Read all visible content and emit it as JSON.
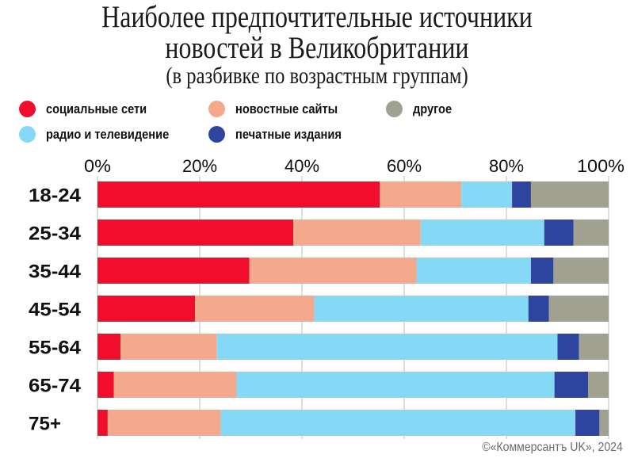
{
  "title_lines": [
    "Наиболее предпочтительные источники",
    "новостей в Великобритании",
    "(в разбивке по возрастным группам)"
  ],
  "credit": "©«Коммерсантъ UK», 2024",
  "chart_data": {
    "type": "bar",
    "orientation": "horizontal",
    "stacked": true,
    "title": "Наиболее предпочтительные источники новостей в Великобритании",
    "subtitle": "(в разбивке по возрастным группам)",
    "xlabel": "",
    "ylabel": "",
    "xlim": [
      0,
      100
    ],
    "x_ticks": [
      "0%",
      "20%",
      "40%",
      "60%",
      "80%",
      "100%"
    ],
    "x_tick_values": [
      0,
      20,
      40,
      60,
      80,
      100
    ],
    "grid": true,
    "legend_position": "top",
    "categories": [
      "18-24",
      "25-34",
      "35-44",
      "45-54",
      "55-64",
      "65-74",
      "75+"
    ],
    "series": [
      {
        "name": "социальные сети",
        "color": "#f00d2e",
        "values": [
          55.2,
          38.3,
          29.7,
          19.1,
          4.5,
          3.2,
          2.0
        ]
      },
      {
        "name": "новостные сайты",
        "color": "#f4a98c",
        "values": [
          16.0,
          24.9,
          32.8,
          23.3,
          18.8,
          24.0,
          22.1
        ]
      },
      {
        "name": "радио и телевидение",
        "color": "#86d8f7",
        "values": [
          9.9,
          24.2,
          22.3,
          41.9,
          66.7,
          62.2,
          69.4
        ]
      },
      {
        "name": "печатные издания",
        "color": "#2e45a0",
        "values": [
          3.7,
          5.7,
          4.4,
          4.0,
          4.2,
          6.6,
          4.7
        ]
      },
      {
        "name": "другое",
        "color": "#a1a191",
        "values": [
          15.2,
          6.9,
          10.8,
          11.7,
          5.8,
          4.0,
          1.8
        ]
      }
    ],
    "legend": [
      {
        "name": "социальные сети",
        "color": "#f00d2e"
      },
      {
        "name": "новостные сайты",
        "color": "#f4a98c"
      },
      {
        "name": "другое",
        "color": "#a1a191"
      },
      {
        "name": "радио и телевидение",
        "color": "#86d8f7"
      },
      {
        "name": "печатные издания",
        "color": "#2e45a0"
      }
    ]
  }
}
